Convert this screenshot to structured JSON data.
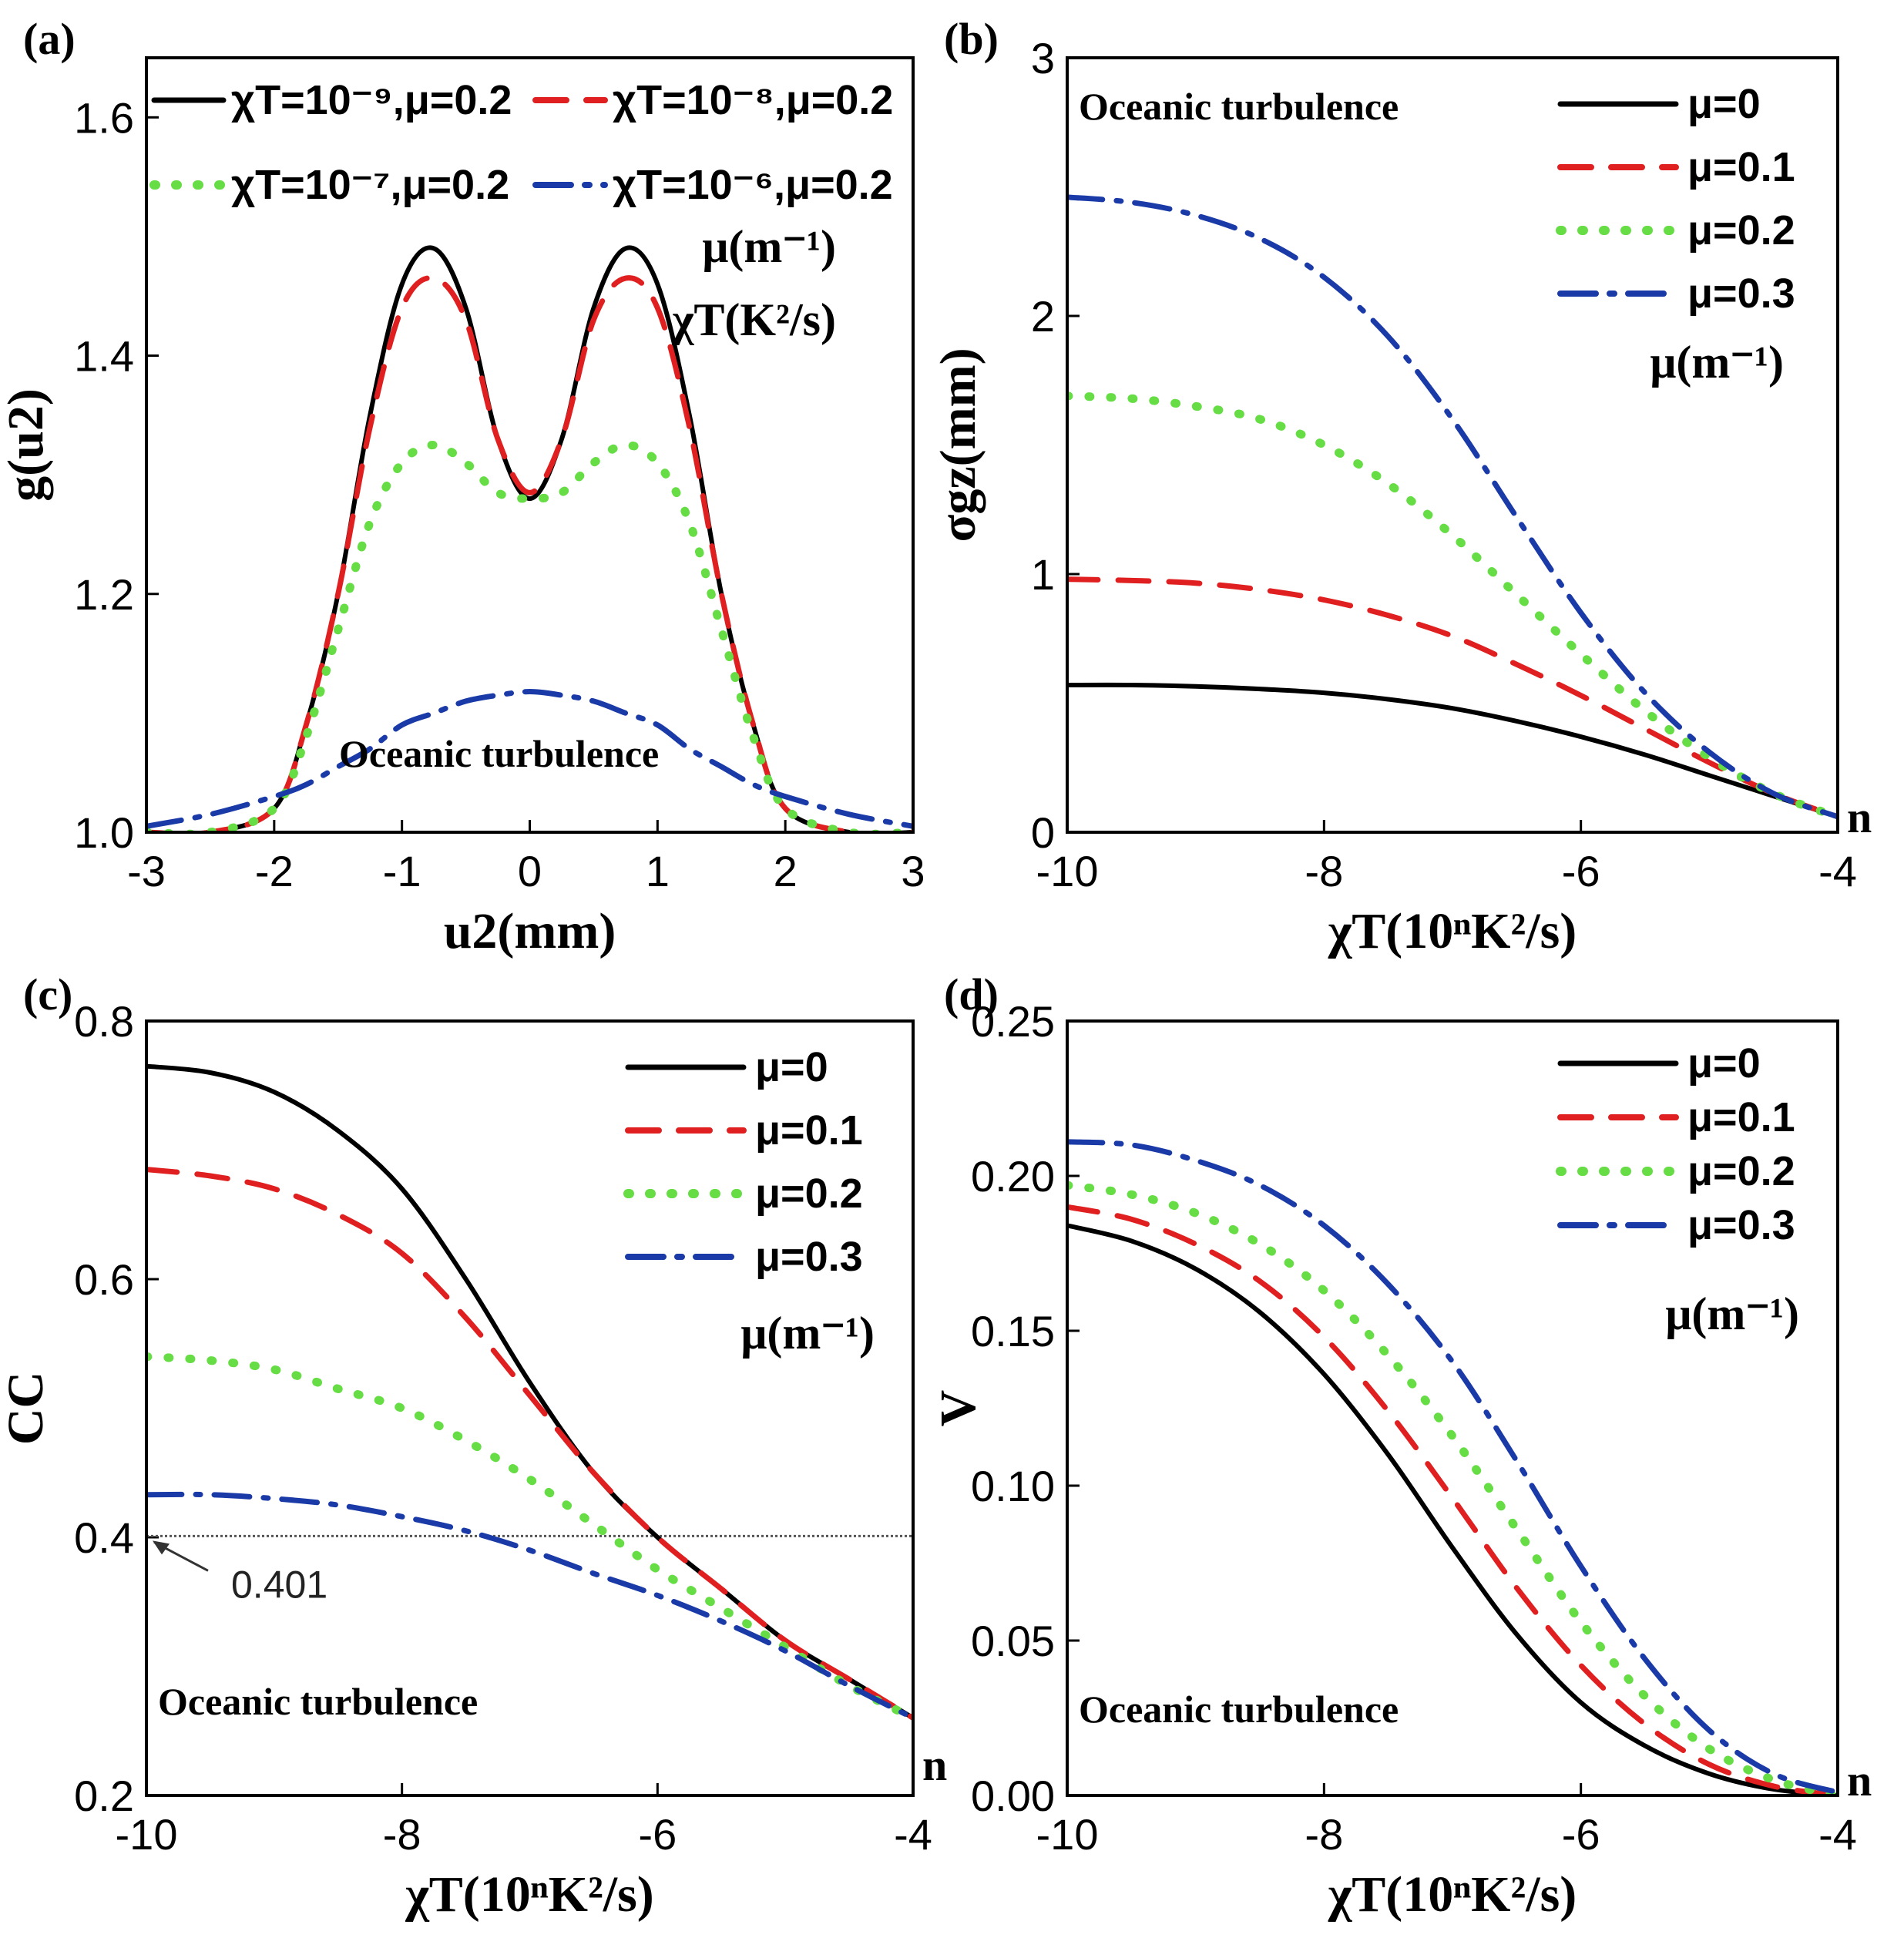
{
  "colors": {
    "black": "#000000",
    "red": "#e02020",
    "green": "#66dd44",
    "blue": "#1a3aa8"
  },
  "chart_data": [
    {
      "panel": "(a)",
      "type": "line",
      "xlabel": "u2(mm)",
      "ylabel": "g(u2)",
      "xlim": [
        -3,
        3
      ],
      "ylim": [
        1.0,
        1.65
      ],
      "xticks": [
        "-3",
        "-2",
        "-1",
        "0",
        "1",
        "2",
        "3"
      ],
      "yticks": [
        "1.0",
        "1.2",
        "1.4",
        "1.6"
      ],
      "annotation": "Oceanic turbulence",
      "units_note": [
        "μ(m⁻¹)",
        "χT(K²/s)"
      ],
      "x": [
        -3,
        -2.5,
        -2.0,
        -1.75,
        -1.5,
        -1.25,
        -1.0,
        -0.75,
        -0.5,
        -0.25,
        0,
        0.25,
        0.5,
        0.75,
        1.0,
        1.25,
        1.5,
        1.75,
        2.0,
        2.5,
        3
      ],
      "series": [
        {
          "name": "χT=10⁻⁹,μ=0.2",
          "style": "solid",
          "color": "black",
          "values": [
            1.0,
            1.0,
            1.02,
            1.09,
            1.2,
            1.35,
            1.46,
            1.49,
            1.44,
            1.33,
            1.28,
            1.33,
            1.44,
            1.49,
            1.46,
            1.35,
            1.2,
            1.09,
            1.02,
            1.0,
            1.0
          ]
        },
        {
          "name": "χT=10⁻⁸,μ=0.2",
          "style": "dashed",
          "color": "red",
          "values": [
            1.0,
            1.0,
            1.02,
            1.09,
            1.2,
            1.34,
            1.44,
            1.465,
            1.43,
            1.33,
            1.285,
            1.33,
            1.43,
            1.465,
            1.44,
            1.34,
            1.2,
            1.09,
            1.02,
            1.0,
            1.0
          ]
        },
        {
          "name": "χT=10⁻⁷,μ=0.2",
          "style": "dotted",
          "color": "green",
          "values": [
            1.0,
            1.0,
            1.02,
            1.08,
            1.17,
            1.26,
            1.31,
            1.325,
            1.31,
            1.285,
            1.28,
            1.285,
            1.31,
            1.325,
            1.31,
            1.26,
            1.17,
            1.08,
            1.02,
            1.0,
            1.0
          ]
        },
        {
          "name": "χT=10⁻⁶,μ=0.2",
          "style": "dashdot",
          "color": "blue",
          "values": [
            1.005,
            1.015,
            1.03,
            1.04,
            1.055,
            1.07,
            1.09,
            1.1,
            1.11,
            1.115,
            1.118,
            1.115,
            1.11,
            1.1,
            1.09,
            1.07,
            1.055,
            1.04,
            1.03,
            1.015,
            1.005
          ]
        }
      ]
    },
    {
      "panel": "(b)",
      "type": "line",
      "xlabel": "χT(10ⁿK²/s)",
      "ylabel": "σgz(mm)",
      "xlim": [
        -10,
        -4
      ],
      "ylim": [
        0,
        3
      ],
      "xticks": [
        "-10",
        "-8",
        "-6",
        "-4"
      ],
      "yticks": [
        "0",
        "1",
        "2",
        "3"
      ],
      "annotation": "Oceanic turbulence",
      "units_note": [
        "μ(m⁻¹)"
      ],
      "n_label": "n",
      "x": [
        -10,
        -9.5,
        -9,
        -8.5,
        -8,
        -7.5,
        -7,
        -6.5,
        -6,
        -5.5,
        -5,
        -4.5,
        -4
      ],
      "series": [
        {
          "name": "μ=0",
          "style": "solid",
          "color": "black",
          "values": [
            0.57,
            0.57,
            0.565,
            0.555,
            0.54,
            0.515,
            0.48,
            0.43,
            0.37,
            0.3,
            0.22,
            0.14,
            0.06
          ]
        },
        {
          "name": "μ=0.1",
          "style": "dashed",
          "color": "red",
          "values": [
            0.98,
            0.975,
            0.965,
            0.94,
            0.9,
            0.84,
            0.76,
            0.65,
            0.53,
            0.4,
            0.27,
            0.15,
            0.06
          ]
        },
        {
          "name": "μ=0.2",
          "style": "dotted",
          "color": "green",
          "values": [
            1.69,
            1.68,
            1.65,
            1.6,
            1.5,
            1.35,
            1.15,
            0.92,
            0.69,
            0.47,
            0.29,
            0.15,
            0.06
          ]
        },
        {
          "name": "μ=0.3",
          "style": "dashdot",
          "color": "blue",
          "values": [
            2.46,
            2.44,
            2.39,
            2.3,
            2.15,
            1.92,
            1.6,
            1.22,
            0.85,
            0.54,
            0.31,
            0.15,
            0.06
          ]
        }
      ]
    },
    {
      "panel": "(c)",
      "type": "line",
      "xlabel": "χT(10ⁿK²/s)",
      "ylabel": "CC",
      "xlim": [
        -10,
        -4
      ],
      "ylim": [
        0.2,
        0.8
      ],
      "xticks": [
        "-10",
        "-8",
        "-6",
        "-4"
      ],
      "yticks": [
        "0.2",
        "0.4",
        "0.6",
        "0.8"
      ],
      "annotation": "Oceanic turbulence",
      "units_note": [
        "μ(m⁻¹)"
      ],
      "n_label": "n",
      "reference_line": {
        "value": 0.401,
        "label": "0.401"
      },
      "x": [
        -10,
        -9.5,
        -9,
        -8.5,
        -8,
        -7.5,
        -7,
        -6.5,
        -6,
        -5.5,
        -5,
        -4.5,
        -4
      ],
      "series": [
        {
          "name": "μ=0",
          "style": "solid",
          "color": "black",
          "values": [
            0.765,
            0.76,
            0.745,
            0.715,
            0.67,
            0.6,
            0.52,
            0.45,
            0.4,
            0.36,
            0.32,
            0.29,
            0.26
          ]
        },
        {
          "name": "μ=0.1",
          "style": "dashed",
          "color": "red",
          "values": [
            0.685,
            0.68,
            0.67,
            0.65,
            0.62,
            0.57,
            0.51,
            0.45,
            0.4,
            0.36,
            0.32,
            0.29,
            0.26
          ]
        },
        {
          "name": "μ=0.2",
          "style": "dotted",
          "color": "green",
          "values": [
            0.54,
            0.537,
            0.53,
            0.515,
            0.5,
            0.475,
            0.445,
            0.41,
            0.375,
            0.345,
            0.315,
            0.285,
            0.26
          ]
        },
        {
          "name": "μ=0.3",
          "style": "dashdot",
          "color": "blue",
          "values": [
            0.433,
            0.433,
            0.43,
            0.425,
            0.416,
            0.405,
            0.39,
            0.372,
            0.355,
            0.335,
            0.312,
            0.285,
            0.26
          ]
        }
      ]
    },
    {
      "panel": "(d)",
      "type": "line",
      "xlabel": "χT(10ⁿK²/s)",
      "ylabel": "V",
      "xlim": [
        -10,
        -4
      ],
      "ylim": [
        0,
        0.25
      ],
      "xticks": [
        "-10",
        "-8",
        "-6",
        "-4"
      ],
      "yticks": [
        "0.00",
        "0.05",
        "0.10",
        "0.15",
        "0.20",
        "0.25"
      ],
      "annotation": "Oceanic turbulence",
      "units_note": [
        "μ(m⁻¹)"
      ],
      "n_label": "n",
      "x": [
        -10,
        -9.5,
        -9,
        -8.5,
        -8,
        -7.5,
        -7,
        -6.5,
        -6,
        -5.5,
        -5,
        -4.5,
        -4
      ],
      "series": [
        {
          "name": "μ=0",
          "style": "solid",
          "color": "black",
          "values": [
            0.184,
            0.179,
            0.17,
            0.156,
            0.136,
            0.11,
            0.08,
            0.052,
            0.03,
            0.016,
            0.007,
            0.002,
            0.0
          ]
        },
        {
          "name": "μ=0.1",
          "style": "dashed",
          "color": "red",
          "values": [
            0.19,
            0.186,
            0.178,
            0.166,
            0.148,
            0.124,
            0.096,
            0.067,
            0.042,
            0.023,
            0.01,
            0.003,
            0.0
          ]
        },
        {
          "name": "μ=0.2",
          "style": "dotted",
          "color": "green",
          "values": [
            0.197,
            0.194,
            0.188,
            0.178,
            0.163,
            0.142,
            0.116,
            0.086,
            0.056,
            0.032,
            0.015,
            0.005,
            0.0
          ]
        },
        {
          "name": "μ=0.3",
          "style": "dashdot",
          "color": "blue",
          "values": [
            0.211,
            0.21,
            0.205,
            0.197,
            0.184,
            0.165,
            0.14,
            0.108,
            0.074,
            0.044,
            0.021,
            0.007,
            0.001
          ]
        }
      ]
    }
  ]
}
